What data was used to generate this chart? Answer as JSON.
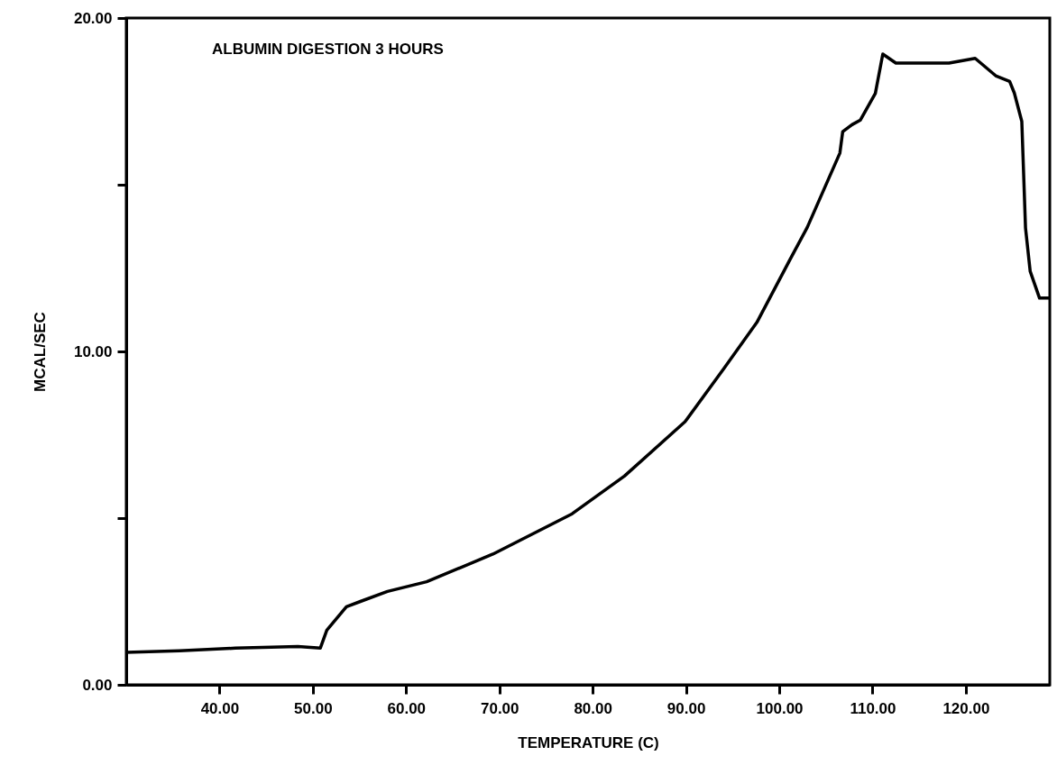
{
  "chart_data": {
    "type": "line",
    "xlabel": "TEMPERATURE (C)",
    "ylabel": "MCAL/SEC",
    "annotations": [
      "ALBUMIN DIGESTION 3 HOURS"
    ],
    "x": [
      30,
      35.7,
      41.7,
      48.4,
      50.8,
      51.5,
      53.6,
      55.1,
      58,
      62.2,
      69.3,
      77.8,
      83.4,
      89.9,
      94.1,
      97.6,
      101.2,
      103,
      106.5,
      106.8,
      107.8,
      108.7,
      110.3,
      111.1,
      112.5,
      118.2,
      121,
      123.2,
      124.7,
      125.2,
      126,
      126.4,
      126.9,
      127.9,
      128.9
    ],
    "series": [
      {
        "color": "#000000",
        "values": [
          0.97,
          1.02,
          1.1,
          1.15,
          1.1,
          1.64,
          2.34,
          2.5,
          2.8,
          3.09,
          3.92,
          5.13,
          6.26,
          7.89,
          9.5,
          10.87,
          12.78,
          13.72,
          15.95,
          16.59,
          16.8,
          16.94,
          17.74,
          18.92,
          18.65,
          18.65,
          18.79,
          18.27,
          18.1,
          17.75,
          16.9,
          13.7,
          12.4,
          11.6,
          11.6
        ]
      }
    ],
    "xlim": [
      30,
      129
    ],
    "ylim": [
      0,
      20
    ],
    "xticks": [
      {
        "value": 40,
        "label": "40.00"
      },
      {
        "value": 50,
        "label": "50.00"
      },
      {
        "value": 60,
        "label": "60.00"
      },
      {
        "value": 70,
        "label": "70.00"
      },
      {
        "value": 80,
        "label": "80.00"
      },
      {
        "value": 90,
        "label": "90.00"
      },
      {
        "value": 100,
        "label": "100.00"
      },
      {
        "value": 110,
        "label": "110.00"
      },
      {
        "value": 120,
        "label": "120.00"
      }
    ],
    "yticks": [
      {
        "value": 0,
        "label": "0.00"
      },
      {
        "value": 5,
        "label": null
      },
      {
        "value": 10,
        "label": "10.00"
      },
      {
        "value": 15,
        "label": null
      },
      {
        "value": 20,
        "label": "20.00"
      }
    ],
    "grid": false,
    "marker": "none",
    "line_style": "solid"
  }
}
